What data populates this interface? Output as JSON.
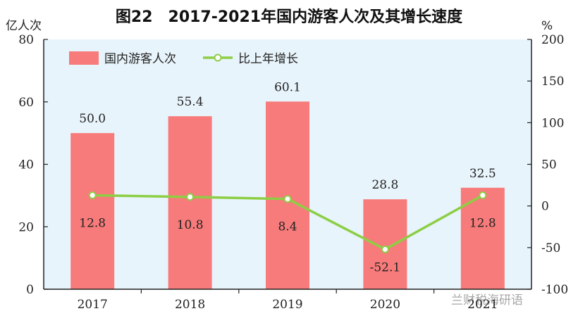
{
  "title": "图22　2017-2021年国内游客人次及其增长速度",
  "y_left_unit": "亿人次",
  "y_right_unit": "%",
  "watermark": "兰财税海研语",
  "colors": {
    "bar": "#f77b7b",
    "line": "#8dce45",
    "plot_bg": "#e8f4fb",
    "marker_fill": "#ffffff"
  },
  "chart_data": {
    "type": "bar",
    "categories": [
      "2017",
      "2018",
      "2019",
      "2020",
      "2021"
    ],
    "series": [
      {
        "name": "国内游客人次",
        "type": "bar",
        "axis": "left",
        "values": [
          50.0,
          55.4,
          60.1,
          28.8,
          32.5
        ],
        "labels": [
          "50.0",
          "55.4",
          "60.1",
          "28.8",
          "32.5"
        ]
      },
      {
        "name": "比上年增长",
        "type": "line",
        "axis": "right",
        "values": [
          12.8,
          10.8,
          8.4,
          -52.1,
          12.8
        ],
        "labels": [
          "12.8",
          "10.8",
          "8.4",
          "-52.1",
          "12.8"
        ]
      }
    ],
    "ylim_left": [
      0,
      80
    ],
    "yticks_left": [
      0,
      20,
      40,
      60,
      80
    ],
    "ylim_right": [
      -100,
      200
    ],
    "yticks_right": [
      -100,
      -50,
      0,
      50,
      100,
      150,
      200
    ],
    "legend": "top-left",
    "grid": false
  }
}
